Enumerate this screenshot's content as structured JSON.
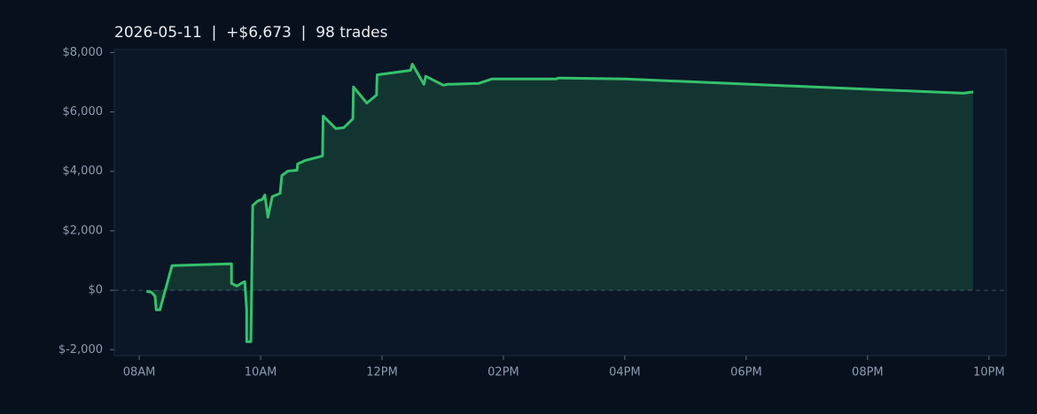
{
  "chart_data": {
    "type": "area-line",
    "title": "2026-05-11  |  +$6,673  |  98 trades",
    "color": "#35c16c",
    "x": [
      8.12,
      8.2,
      8.26,
      8.28,
      8.34,
      8.54,
      9.52,
      9.52,
      9.61,
      9.68,
      9.74,
      9.77,
      9.77,
      9.84,
      9.87,
      9.95,
      10.03,
      10.07,
      10.12,
      10.19,
      10.32,
      10.35,
      10.45,
      10.6,
      10.61,
      10.74,
      11.02,
      11.03,
      11.24,
      11.37,
      11.52,
      11.53,
      11.75,
      11.91,
      11.92,
      12.47,
      12.5,
      12.69,
      12.72,
      13.01,
      13.08,
      13.59,
      13.81,
      14.86,
      14.91,
      16.01,
      21.58,
      21.74
    ],
    "values": [
      -40,
      -70,
      -200,
      -660,
      -660,
      830,
      890,
      230,
      140,
      230,
      290,
      -660,
      -1730,
      -1730,
      2850,
      3000,
      3060,
      3210,
      2460,
      3150,
      3260,
      3860,
      4010,
      4040,
      4250,
      4370,
      4520,
      5860,
      5440,
      5470,
      5770,
      6840,
      6300,
      6570,
      7250,
      7400,
      7610,
      6930,
      7200,
      6900,
      6930,
      6960,
      7110,
      7110,
      7140,
      7110,
      6630,
      6673
    ],
    "xlim": [
      7.59,
      22.28
    ],
    "ylim": [
      -2200,
      8100
    ],
    "xticks": [
      {
        "value": 8,
        "label": "08AM"
      },
      {
        "value": 10,
        "label": "10AM"
      },
      {
        "value": 12,
        "label": "12PM"
      },
      {
        "value": 14,
        "label": "02PM"
      },
      {
        "value": 16,
        "label": "04PM"
      },
      {
        "value": 18,
        "label": "06PM"
      },
      {
        "value": 20,
        "label": "08PM"
      },
      {
        "value": 22,
        "label": "10PM"
      }
    ],
    "yticks": [
      {
        "value": -2000,
        "label": "$-2,000"
      },
      {
        "value": 0,
        "label": "$0"
      },
      {
        "value": 2000,
        "label": "$2,000"
      },
      {
        "value": 4000,
        "label": "$4,000"
      },
      {
        "value": 6000,
        "label": "$6,000"
      },
      {
        "value": 8000,
        "label": "$8,000"
      }
    ]
  }
}
